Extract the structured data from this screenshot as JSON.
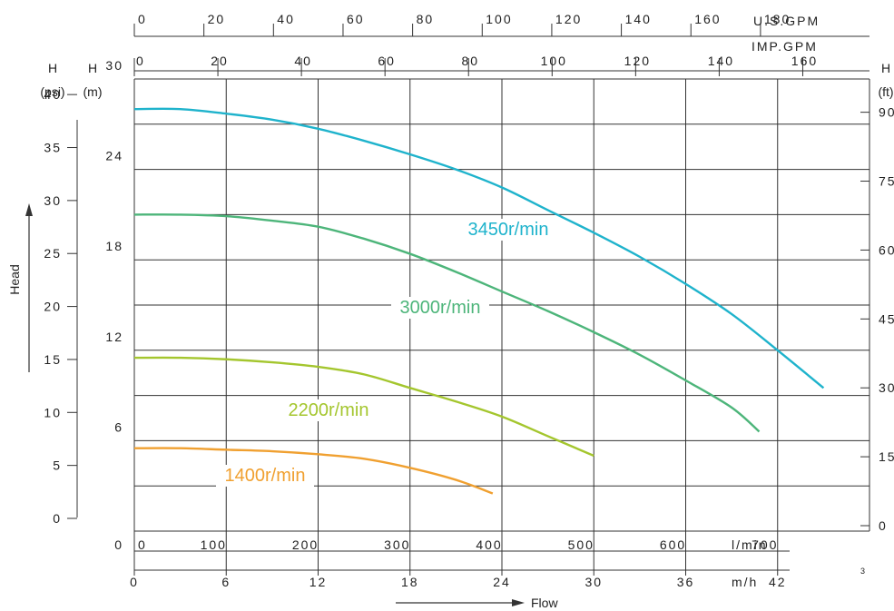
{
  "chart_data": {
    "type": "line",
    "axes": {
      "top_usgpm": {
        "label": "U.S.GPM",
        "ticks": [
          0,
          20,
          40,
          60,
          80,
          100,
          120,
          140,
          160,
          180
        ]
      },
      "top_impgpm": {
        "label": "IMP.GPM",
        "ticks": [
          0,
          20,
          40,
          60,
          80,
          100,
          120,
          140,
          160
        ]
      },
      "bottom_lmin": {
        "label": "l/min",
        "ticks": [
          0,
          100,
          200,
          300,
          400,
          500,
          600,
          700
        ],
        "range": [
          0,
          800
        ]
      },
      "bottom_m3h": {
        "label": "m/h",
        "superscript": "3",
        "ticks": [
          0,
          6,
          12,
          18,
          24,
          30,
          36,
          42
        ]
      },
      "left_psi": {
        "title": "H",
        "unit": "(psi)",
        "ticks": [
          0,
          5,
          10,
          15,
          20,
          25,
          30,
          35,
          40
        ]
      },
      "left_m": {
        "title": "H",
        "unit": "(m)",
        "ticks": [
          0,
          6,
          12,
          18,
          24,
          30
        ],
        "range": [
          0,
          30
        ]
      },
      "right_ft": {
        "title": "H",
        "unit": "(ft)",
        "ticks": [
          0,
          15,
          30,
          45,
          60,
          75,
          90
        ]
      }
    },
    "xlabel": "Flow",
    "ylabel": "Head",
    "grid": true,
    "series": [
      {
        "name": "3450r/min",
        "color": "#1fb3cc",
        "x": [
          0,
          50,
          100,
          150,
          200,
          250,
          300,
          350,
          400,
          450,
          500,
          550,
          600,
          650,
          700,
          750
        ],
        "y": [
          28.0,
          28.0,
          27.7,
          27.3,
          26.7,
          25.9,
          25.0,
          24.0,
          22.8,
          21.3,
          19.8,
          18.2,
          16.4,
          14.4,
          12.0,
          9.5
        ]
      },
      {
        "name": "3000r/min",
        "color": "#4db57a",
        "x": [
          0,
          50,
          100,
          150,
          200,
          250,
          300,
          350,
          400,
          450,
          500,
          550,
          600,
          650,
          680
        ],
        "y": [
          21.0,
          21.0,
          20.9,
          20.6,
          20.2,
          19.4,
          18.4,
          17.2,
          15.9,
          14.6,
          13.2,
          11.7,
          10.0,
          8.2,
          6.6
        ]
      },
      {
        "name": "2200r/min",
        "color": "#a4c62e",
        "x": [
          0,
          50,
          100,
          150,
          200,
          250,
          300,
          350,
          400,
          450,
          500
        ],
        "y": [
          11.5,
          11.5,
          11.4,
          11.2,
          10.9,
          10.4,
          9.5,
          8.6,
          7.6,
          6.3,
          5.0
        ]
      },
      {
        "name": "1400r/min",
        "color": "#f0a030",
        "x": [
          0,
          50,
          100,
          150,
          200,
          250,
          300,
          350,
          390
        ],
        "y": [
          5.5,
          5.5,
          5.4,
          5.3,
          5.1,
          4.8,
          4.2,
          3.4,
          2.5
        ]
      }
    ]
  }
}
